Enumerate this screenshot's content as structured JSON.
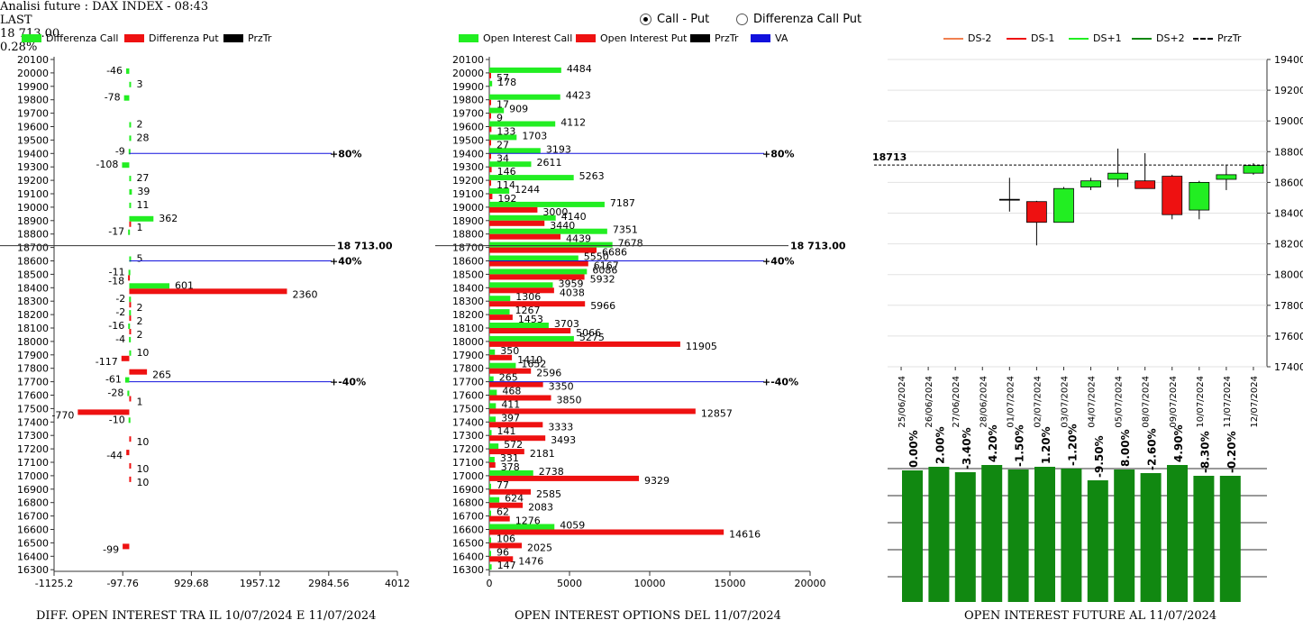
{
  "header": {
    "title": "Analisi future : DAX INDEX - 08:43",
    "last_label": "LAST",
    "last_value": "18 713.00",
    "change": "0.28%"
  },
  "view_mode": {
    "options": [
      "Call - Put",
      "Differenza Call Put"
    ],
    "selected": "Call - Put"
  },
  "chart_data": [
    {
      "type": "bar",
      "orientation": "horizontal",
      "footer": "DIFF. OPEN INTEREST TRA IL 10/07/2024 E 11/07/2024",
      "legend": [
        {
          "name": "Differenza Call",
          "color": "#22ee22"
        },
        {
          "name": "Differenza Put",
          "color": "#ee1111"
        },
        {
          "name": "PrzTr",
          "color": "#000000"
        }
      ],
      "strikes": [
        20100,
        20000,
        19900,
        19800,
        19700,
        19600,
        19500,
        19400,
        19300,
        19200,
        19100,
        19000,
        18900,
        18800,
        18700,
        18600,
        18500,
        18400,
        18300,
        18200,
        18100,
        18000,
        17900,
        17800,
        17700,
        17600,
        17500,
        17400,
        17300,
        17200,
        17100,
        17000,
        16900,
        16800,
        16700,
        16600,
        16500,
        16400,
        16300
      ],
      "xlim": [
        -1125.2,
        4012
      ],
      "xticks": [
        "-1125.2",
        "-97.76",
        "929.68",
        "1957.12",
        "2984.56",
        "4012"
      ],
      "call_diff": [
        {
          "strike": 20000,
          "value": -46
        },
        {
          "strike": 19900,
          "value": 3
        },
        {
          "strike": 19800,
          "value": -78
        },
        {
          "strike": 19600,
          "value": 2
        },
        {
          "strike": 19500,
          "value": 28
        },
        {
          "strike": 19400,
          "value": -9
        },
        {
          "strike": 19300,
          "value": -108
        },
        {
          "strike": 19200,
          "value": 27
        },
        {
          "strike": 19100,
          "value": 39
        },
        {
          "strike": 19000,
          "value": 11
        },
        {
          "strike": 18900,
          "value": 362
        },
        {
          "strike": 18800,
          "value": -17
        },
        {
          "strike": 18600,
          "value": 5
        },
        {
          "strike": 18500,
          "value": -11
        },
        {
          "strike": 18400,
          "value": 601
        },
        {
          "strike": 18300,
          "value": -2
        },
        {
          "strike": 18200,
          "value": -2
        },
        {
          "strike": 18100,
          "value": -16
        },
        {
          "strike": 18000,
          "value": -4
        },
        {
          "strike": 17700,
          "value": -61
        },
        {
          "strike": 17600,
          "value": -28
        },
        {
          "strike": 17400,
          "value": -10
        }
      ],
      "put_diff": [
        {
          "strike": 18900,
          "value": 1
        },
        {
          "strike": 18500,
          "value": -18
        },
        {
          "strike": 18400,
          "value": 2360
        },
        {
          "strike": 18300,
          "value": 2
        },
        {
          "strike": 18200,
          "value": 2
        },
        {
          "strike": 18100,
          "value": 2
        },
        {
          "strike": 17900,
          "value": -117
        },
        {
          "strike": 17900,
          "value": 10,
          "call": true
        },
        {
          "strike": 17800,
          "value": 265
        },
        {
          "strike": 17600,
          "value": 1
        },
        {
          "strike": 17500,
          "value": -770
        },
        {
          "strike": 17300,
          "value": 10
        },
        {
          "strike": 17200,
          "value": -44
        },
        {
          "strike": 17100,
          "value": 10
        },
        {
          "strike": 17000,
          "value": 10
        },
        {
          "strike": 16500,
          "value": -99
        }
      ],
      "price_line": {
        "strike": 18713,
        "label": "18 713.00"
      },
      "ref_lines": [
        {
          "strike": 19400,
          "label": "80%"
        },
        {
          "strike": 18600,
          "label": "40%"
        },
        {
          "strike": 17700,
          "label": "-40%"
        }
      ]
    },
    {
      "type": "bar",
      "orientation": "horizontal",
      "footer": "OPEN INTEREST OPTIONS DEL 11/07/2024",
      "legend": [
        {
          "name": "Open Interest Call",
          "color": "#22ee22"
        },
        {
          "name": "Open Interest Put",
          "color": "#ee1111"
        },
        {
          "name": "PrzTr",
          "color": "#000000"
        },
        {
          "name": "VA",
          "color": "#1111dd"
        }
      ],
      "xlim": [
        0,
        20000
      ],
      "xticks": [
        "0",
        "5000",
        "10000",
        "15000",
        "20000"
      ],
      "call_oi": [
        {
          "strike": 20000,
          "value": 4484
        },
        {
          "strike": 19900,
          "value": 178
        },
        {
          "strike": 19800,
          "value": 4423
        },
        {
          "strike": 19700,
          "value": 909
        },
        {
          "strike": 19600,
          "value": 4112
        },
        {
          "strike": 19500,
          "value": 1703
        },
        {
          "strike": 19400,
          "value": 3193
        },
        {
          "strike": 19300,
          "value": 2611
        },
        {
          "strike": 19200,
          "value": 5263
        },
        {
          "strike": 19100,
          "value": 1244
        },
        {
          "strike": 19000,
          "value": 7187
        },
        {
          "strike": 18900,
          "value": 4140
        },
        {
          "strike": 18800,
          "value": 7351
        },
        {
          "strike": 18700,
          "value": 7678
        },
        {
          "strike": 18600,
          "value": 5550
        },
        {
          "strike": 18500,
          "value": 6086
        },
        {
          "strike": 18400,
          "value": 3959
        },
        {
          "strike": 18300,
          "value": 1306
        },
        {
          "strike": 18200,
          "value": 1267
        },
        {
          "strike": 18100,
          "value": 3703
        },
        {
          "strike": 18000,
          "value": 5275
        },
        {
          "strike": 17900,
          "value": 350
        },
        {
          "strike": 17800,
          "value": 1652
        },
        {
          "strike": 17700,
          "value": 265
        },
        {
          "strike": 17600,
          "value": 468
        },
        {
          "strike": 17500,
          "value": 411
        },
        {
          "strike": 17400,
          "value": 397
        },
        {
          "strike": 17300,
          "value": 141
        },
        {
          "strike": 17200,
          "value": 572
        },
        {
          "strike": 17100,
          "value": 331
        },
        {
          "strike": 17000,
          "value": 2738
        },
        {
          "strike": 16900,
          "value": 77
        },
        {
          "strike": 16800,
          "value": 624
        },
        {
          "strike": 16700,
          "value": 62
        },
        {
          "strike": 16600,
          "value": 4059
        },
        {
          "strike": 16500,
          "value": 106
        },
        {
          "strike": 16400,
          "value": 96
        },
        {
          "strike": 16300,
          "value": 147
        }
      ],
      "put_oi": [
        {
          "strike": 20000,
          "value": 57
        },
        {
          "strike": 19800,
          "value": 17
        },
        {
          "strike": 19700,
          "value": 9
        },
        {
          "strike": 19600,
          "value": 133
        },
        {
          "strike": 19500,
          "value": 27
        },
        {
          "strike": 19400,
          "value": 34
        },
        {
          "strike": 19300,
          "value": 146
        },
        {
          "strike": 19200,
          "value": 114
        },
        {
          "strike": 19100,
          "value": 192
        },
        {
          "strike": 19000,
          "value": 3000
        },
        {
          "strike": 18900,
          "value": 3440
        },
        {
          "strike": 18800,
          "value": 4439
        },
        {
          "strike": 18700,
          "value": 6686
        },
        {
          "strike": 18600,
          "value": 6167
        },
        {
          "strike": 18500,
          "value": 5932
        },
        {
          "strike": 18400,
          "value": 4038
        },
        {
          "strike": 18300,
          "value": 5966
        },
        {
          "strike": 18200,
          "value": 1453
        },
        {
          "strike": 18100,
          "value": 5066
        },
        {
          "strike": 18000,
          "value": 11905
        },
        {
          "strike": 17900,
          "value": 1410
        },
        {
          "strike": 17800,
          "value": 2596
        },
        {
          "strike": 17700,
          "value": 3350
        },
        {
          "strike": 17600,
          "value": 3850
        },
        {
          "strike": 17500,
          "value": 12857
        },
        {
          "strike": 17400,
          "value": 3333
        },
        {
          "strike": 17300,
          "value": 3493
        },
        {
          "strike": 17200,
          "value": 2181
        },
        {
          "strike": 17100,
          "value": 378
        },
        {
          "strike": 17000,
          "value": 9329
        },
        {
          "strike": 16900,
          "value": 2585
        },
        {
          "strike": 16800,
          "value": 2083
        },
        {
          "strike": 16700,
          "value": 1276
        },
        {
          "strike": 16600,
          "value": 14616
        },
        {
          "strike": 16500,
          "value": 2025
        },
        {
          "strike": 16400,
          "value": 1476
        }
      ],
      "price_line": {
        "strike": 18713,
        "label": "18 713.00"
      },
      "ref_lines": [
        {
          "strike": 19400,
          "label": "80%"
        },
        {
          "strike": 18600,
          "label": "40%"
        },
        {
          "strike": 17700,
          "label": "-40%"
        }
      ]
    },
    {
      "type": "candlestick",
      "legend": [
        {
          "name": "DS-2",
          "color": "#f08050",
          "style": "solid"
        },
        {
          "name": "DS-1",
          "color": "#ee1111",
          "style": "solid"
        },
        {
          "name": "DS+1",
          "color": "#22ee22",
          "style": "solid"
        },
        {
          "name": "DS+2",
          "color": "#118811",
          "style": "solid"
        },
        {
          "name": "PrzTr",
          "color": "#000000",
          "style": "dashed"
        }
      ],
      "ylim": [
        17400,
        19400
      ],
      "yticks": [
        "19400",
        "19200",
        "19000",
        "18800",
        "18600",
        "18400",
        "18200",
        "18000",
        "17800",
        "17600",
        "17400"
      ],
      "price_line": {
        "value": 18713,
        "label": "18713"
      },
      "dates": [
        "25/06/2024",
        "26/06/2024",
        "27/06/2024",
        "28/06/2024",
        "01/07/2024",
        "02/07/2024",
        "03/07/2024",
        "04/07/2024",
        "05/07/2024",
        "08/07/2024",
        "09/07/2024",
        "10/07/2024",
        "11/07/2024",
        "12/07/2024"
      ],
      "candles": [
        {
          "date": "01/07/2024",
          "open": 18490,
          "close": 18490,
          "high": 18630,
          "low": 18410
        },
        {
          "date": "02/07/2024",
          "open": 18475,
          "close": 18340,
          "high": 18480,
          "low": 18190
        },
        {
          "date": "03/07/2024",
          "open": 18340,
          "close": 18560,
          "high": 18570,
          "low": 18340
        },
        {
          "date": "04/07/2024",
          "open": 18570,
          "close": 18610,
          "high": 18630,
          "low": 18550
        },
        {
          "date": "05/07/2024",
          "open": 18620,
          "close": 18660,
          "high": 18820,
          "low": 18570
        },
        {
          "date": "08/07/2024",
          "open": 18610,
          "close": 18560,
          "high": 18790,
          "low": 18560
        },
        {
          "date": "09/07/2024",
          "open": 18640,
          "close": 18390,
          "high": 18650,
          "low": 18360
        },
        {
          "date": "10/07/2024",
          "open": 18420,
          "close": 18600,
          "high": 18610,
          "low": 18360
        },
        {
          "date": "11/07/2024",
          "open": 18620,
          "close": 18650,
          "high": 18710,
          "low": 18550
        },
        {
          "date": "12/07/2024",
          "open": 18660,
          "close": 18710,
          "high": 18725,
          "low": 18650
        }
      ]
    },
    {
      "type": "bar",
      "footer": "OPEN INTEREST FUTURE AL 11/07/2024",
      "categories": [
        "25/06/2024",
        "26/06/2024",
        "27/06/2024",
        "28/06/2024",
        "01/07/2024",
        "02/07/2024",
        "03/07/2024",
        "04/07/2024",
        "05/07/2024",
        "08/07/2024",
        "09/07/2024",
        "10/07/2024",
        "11/07/2024"
      ],
      "labels": [
        "0.00%",
        "2.00%",
        "-3.40%",
        "4.20%",
        "-1.50%",
        "1.20%",
        "-1.20%",
        "-9.50%",
        "8.00%",
        "-2.60%",
        "4.90%",
        "-8.30%",
        "-0.20%"
      ],
      "values": [
        0.0,
        2.0,
        -3.4,
        4.2,
        -1.5,
        1.2,
        -1.2,
        -9.5,
        8.0,
        -2.6,
        4.9,
        -8.3,
        -0.2
      ],
      "heights": [
        146,
        150,
        144,
        152,
        147,
        150,
        148,
        135,
        147,
        143,
        152,
        140,
        140
      ],
      "color": "#118811"
    }
  ]
}
